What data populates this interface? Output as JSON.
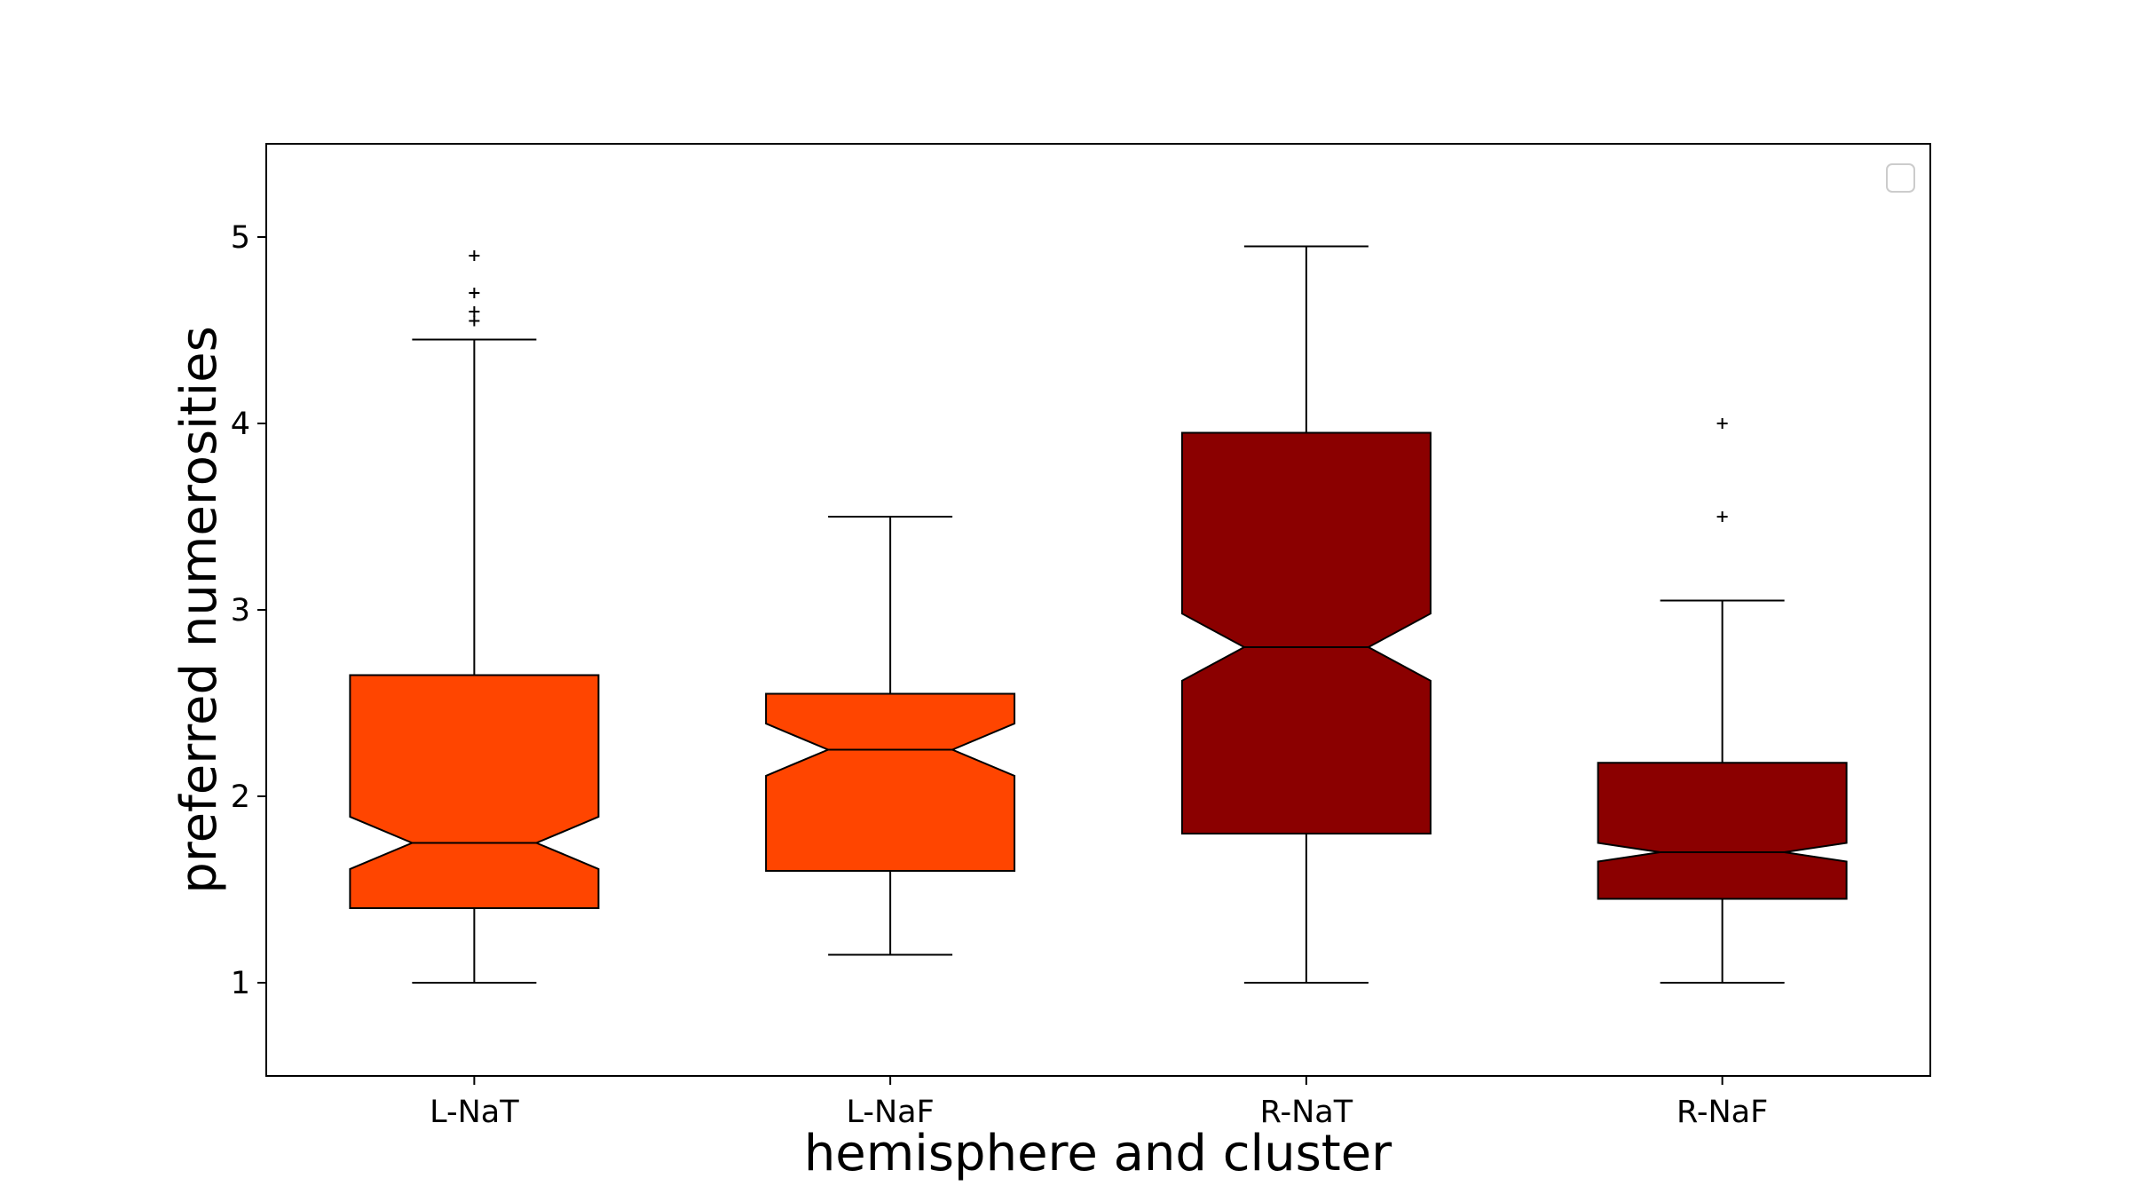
{
  "chart_data": {
    "type": "boxplot",
    "title": "",
    "xlabel": "hemisphere and cluster",
    "ylabel": "preferred numerosities",
    "ylim": [
      0.5,
      5.5
    ],
    "yticks": [
      1,
      2,
      3,
      4,
      5
    ],
    "grid": false,
    "notched": true,
    "legend": {
      "placement": "top-right",
      "entries": []
    },
    "categories": [
      "L-NaT",
      "L-NaF",
      "R-NaT",
      "R-NaF"
    ],
    "boxes": [
      {
        "category": "L-NaT",
        "color": "#ff4500",
        "whisker_low": 1.0,
        "q1": 1.4,
        "median": 1.75,
        "q3": 2.65,
        "whisker_high": 4.45,
        "notch_low": 1.61,
        "notch_high": 1.89,
        "outliers": [
          4.55,
          4.6,
          4.7,
          4.9
        ]
      },
      {
        "category": "L-NaF",
        "color": "#ff4500",
        "whisker_low": 1.15,
        "q1": 1.6,
        "median": 2.25,
        "q3": 2.55,
        "whisker_high": 3.5,
        "notch_low": 2.11,
        "notch_high": 2.39,
        "outliers": []
      },
      {
        "category": "R-NaT",
        "color": "#8b0000",
        "whisker_low": 1.0,
        "q1": 1.8,
        "median": 2.8,
        "q3": 3.95,
        "whisker_high": 4.95,
        "notch_low": 2.62,
        "notch_high": 2.98,
        "outliers": []
      },
      {
        "category": "R-NaF",
        "color": "#8b0000",
        "whisker_low": 1.0,
        "q1": 1.45,
        "median": 1.7,
        "q3": 2.18,
        "whisker_high": 3.05,
        "notch_low": 1.65,
        "notch_high": 1.75,
        "outliers": [
          3.5,
          4.0
        ]
      }
    ]
  }
}
